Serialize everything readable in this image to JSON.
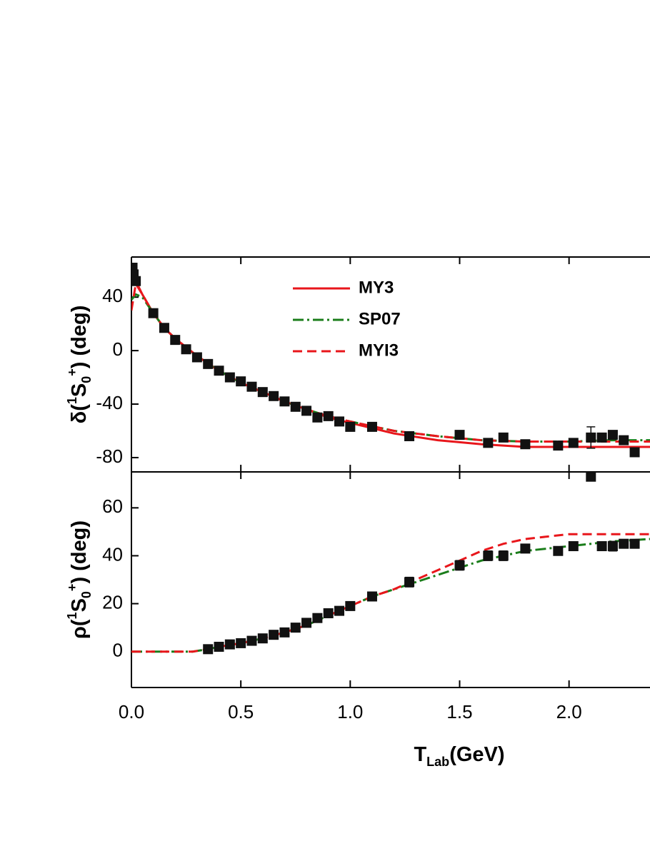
{
  "chart_data": [
    {
      "type": "line",
      "ylabel": [
        {
          "text": "δ("
        },
        {
          "text": "1",
          "shift": "sup"
        },
        {
          "text": "S"
        },
        {
          "text": "0",
          "shift": "sub"
        },
        {
          "text": "+",
          "shift": "sup"
        },
        {
          "text": ")  (deg)"
        }
      ],
      "xlim": [
        0,
        2.37
      ],
      "ylim": [
        -90.7,
        70
      ],
      "xticks": [
        0,
        0.5,
        1,
        1.5,
        2
      ],
      "yticks": [
        -80,
        -40,
        0,
        40
      ],
      "xtick_labels": false,
      "legend": "top-center",
      "series": [
        {
          "name": "MY3",
          "color": "#e8161b",
          "style": "solid",
          "x": [
            0,
            0.02,
            0.05,
            0.1,
            0.15,
            0.2,
            0.3,
            0.4,
            0.5,
            0.6,
            0.7,
            0.8,
            0.9,
            1.0,
            1.2,
            1.4,
            1.6,
            1.8,
            2.0,
            2.2,
            2.37
          ],
          "values": [
            65,
            52,
            42,
            28,
            17,
            9,
            -4,
            -15,
            -24,
            -31,
            -38,
            -44,
            -50,
            -54,
            -62,
            -67,
            -70,
            -72,
            -72,
            -72,
            -72
          ]
        },
        {
          "name": "SP07",
          "color": "#1a7d1a",
          "style": "dashdot",
          "x": [
            0,
            0.02,
            0.05,
            0.1,
            0.15,
            0.2,
            0.3,
            0.4,
            0.5,
            0.6,
            0.7,
            0.8,
            0.9,
            1.0,
            1.2,
            1.4,
            1.6,
            1.8,
            2.0,
            2.2,
            2.37
          ],
          "values": [
            38,
            42,
            40,
            28,
            17,
            9,
            -4,
            -15,
            -24,
            -31,
            -38,
            -44,
            -49,
            -53,
            -60,
            -64,
            -67,
            -68,
            -68,
            -67,
            -67
          ]
        },
        {
          "name": "MYI3",
          "color": "#e8161b",
          "style": "dashed",
          "x": [
            0,
            0.02,
            0.05,
            0.1,
            0.15,
            0.2,
            0.3,
            0.4,
            0.5,
            0.6,
            0.7,
            0.8,
            0.9,
            1.0,
            1.2,
            1.4,
            1.6,
            1.8,
            2.0,
            2.2,
            2.37
          ],
          "values": [
            30,
            50,
            42,
            28,
            17,
            9,
            -4,
            -15,
            -24,
            -31,
            -38,
            -44,
            -49,
            -53,
            -60,
            -64,
            -67,
            -68,
            -68,
            -68,
            -68
          ]
        },
        {
          "color": "#111111",
          "style": "markers",
          "x": [
            0.005,
            0.01,
            0.02,
            0.1,
            0.15,
            0.2,
            0.25,
            0.3,
            0.35,
            0.4,
            0.45,
            0.5,
            0.55,
            0.6,
            0.65,
            0.7,
            0.75,
            0.8,
            0.85,
            0.9,
            0.95,
            1.0,
            1.1,
            1.27,
            1.5,
            1.63,
            1.7,
            1.8,
            1.95,
            2.02,
            2.1,
            2.15,
            2.2,
            2.25,
            2.3
          ],
          "values": [
            62,
            57,
            52,
            28,
            17,
            8,
            1,
            -5,
            -10,
            -15,
            -20,
            -23,
            -27,
            -31,
            -34,
            -38,
            -42,
            -45,
            -50,
            -49,
            -53,
            -57,
            -57,
            -64,
            -63,
            -69,
            -65,
            -70,
            -71,
            -69,
            -65,
            -65,
            -63,
            -67,
            -76
          ],
          "errors": [
            null,
            null,
            null,
            null,
            null,
            null,
            null,
            null,
            null,
            null,
            null,
            null,
            null,
            null,
            null,
            null,
            null,
            null,
            null,
            null,
            null,
            null,
            null,
            null,
            null,
            null,
            null,
            null,
            null,
            null,
            8,
            null,
            null,
            null,
            null
          ]
        }
      ]
    },
    {
      "type": "line",
      "ylabel": [
        {
          "text": "ρ("
        },
        {
          "text": "1",
          "shift": "sup"
        },
        {
          "text": "S"
        },
        {
          "text": "0",
          "shift": "sub"
        },
        {
          "text": "+",
          "shift": "sup"
        },
        {
          "text": ")  (deg)"
        }
      ],
      "xlabel": [
        {
          "text": "T"
        },
        {
          "text": "Lab",
          "shift": "sub"
        },
        {
          "text": "(GeV)"
        }
      ],
      "xlim": [
        0,
        2.37
      ],
      "ylim": [
        -15,
        75
      ],
      "xticks": [
        {
          "value": 0,
          "label": "0.0"
        },
        {
          "value": 0.5,
          "label": "0.5"
        },
        {
          "value": 1,
          "label": "1.0"
        },
        {
          "value": 1.5,
          "label": "1.5"
        },
        {
          "value": 2,
          "label": "2.0"
        }
      ],
      "yticks": [
        0,
        20,
        40,
        60
      ],
      "xtick_labels": true,
      "series": [
        {
          "color": "#1a7d1a",
          "style": "dashdot",
          "x": [
            0,
            0.1,
            0.2,
            0.28,
            0.35,
            0.4,
            0.5,
            0.6,
            0.7,
            0.8,
            0.9,
            1.0,
            1.1,
            1.2,
            1.3,
            1.4,
            1.5,
            1.6,
            1.7,
            1.8,
            1.9,
            2.0,
            2.1,
            2.2,
            2.37
          ],
          "values": [
            0,
            0,
            0,
            0,
            1,
            2,
            3.5,
            5.5,
            8,
            11,
            15,
            19,
            23,
            26,
            29,
            32,
            35,
            38,
            40,
            42,
            43,
            44,
            45,
            46,
            47
          ]
        },
        {
          "color": "#e8161b",
          "style": "dashed",
          "x": [
            0,
            0.1,
            0.2,
            0.28,
            0.35,
            0.4,
            0.5,
            0.6,
            0.7,
            0.8,
            0.9,
            1.0,
            1.1,
            1.2,
            1.3,
            1.4,
            1.5,
            1.6,
            1.7,
            1.8,
            1.9,
            2.0,
            2.1,
            2.2,
            2.37
          ],
          "values": [
            0,
            0,
            0,
            0,
            1,
            2,
            3.5,
            5.5,
            8,
            11,
            15,
            19,
            23,
            26,
            30,
            34,
            38,
            42,
            45,
            47,
            48,
            49,
            49,
            49,
            49
          ]
        },
        {
          "color": "#111111",
          "style": "markers",
          "x": [
            0.35,
            0.4,
            0.45,
            0.5,
            0.55,
            0.6,
            0.65,
            0.7,
            0.75,
            0.8,
            0.85,
            0.9,
            0.95,
            1.0,
            1.1,
            1.27,
            1.5,
            1.63,
            1.7,
            1.8,
            1.95,
            2.02,
            2.1,
            2.15,
            2.2,
            2.25,
            2.3
          ],
          "values": [
            1,
            2,
            3,
            3.5,
            4.5,
            5.5,
            7,
            8,
            10,
            12,
            14,
            16,
            17,
            19,
            23,
            29,
            36,
            40,
            40,
            43,
            42,
            44,
            73,
            44,
            44,
            45,
            45
          ],
          "errors": [
            null,
            null,
            null,
            null,
            null,
            null,
            null,
            null,
            null,
            null,
            null,
            null,
            null,
            null,
            null,
            2,
            2,
            2,
            2,
            null,
            null,
            null,
            null,
            null,
            2,
            null,
            null
          ]
        }
      ]
    }
  ]
}
